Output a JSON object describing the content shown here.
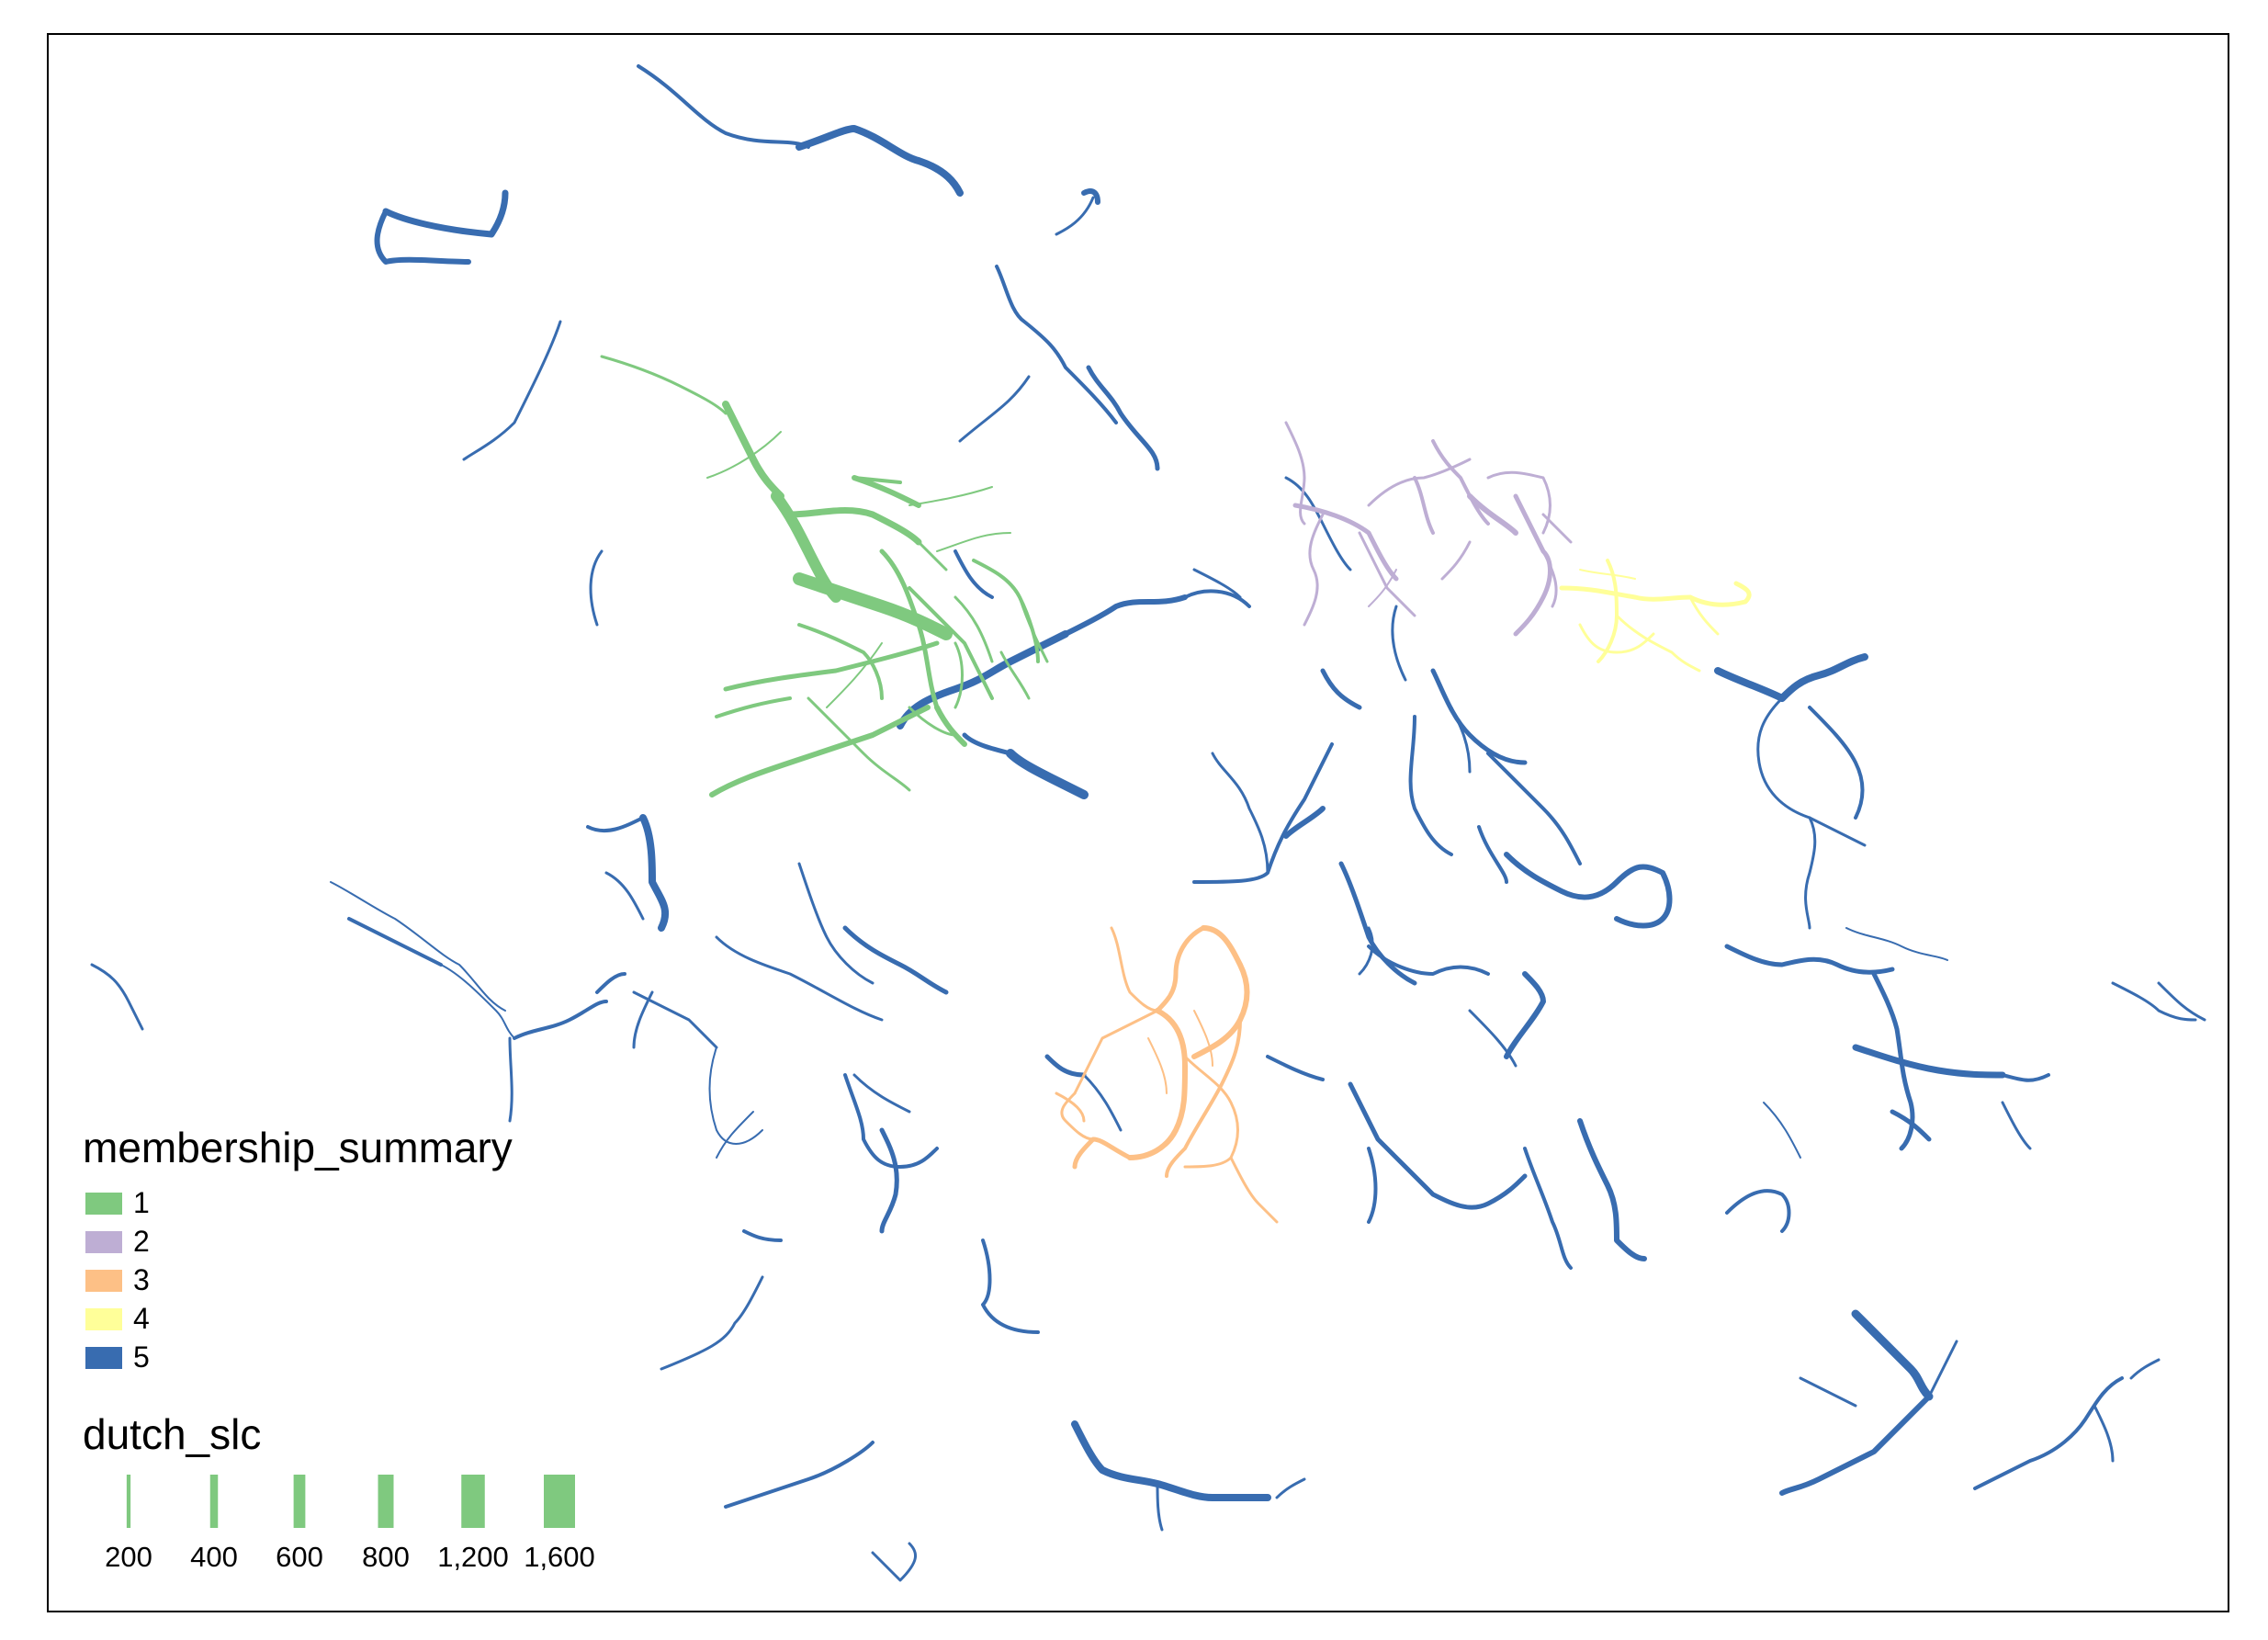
{
  "legend": {
    "membership_title": "membership_summary",
    "membership_items": [
      {
        "label": "1",
        "color": "#7fc97f"
      },
      {
        "label": "2",
        "color": "#beaed4"
      },
      {
        "label": "3",
        "color": "#fdc086"
      },
      {
        "label": "4",
        "color": "#ffff99"
      },
      {
        "label": "5",
        "color": "#386cb0"
      }
    ],
    "size_title": "dutch_slc",
    "size_items": [
      {
        "label": "200",
        "value": 200
      },
      {
        "label": "400",
        "value": 400
      },
      {
        "label": "600",
        "value": 600
      },
      {
        "label": "800",
        "value": 800
      },
      {
        "label": "1,200",
        "value": 1200
      },
      {
        "label": "1,600",
        "value": 1600
      }
    ],
    "size_swatch_color": "#7fc97f"
  },
  "colors": {
    "cluster_1": "#7fc97f",
    "cluster_2": "#beaed4",
    "cluster_3": "#fdc086",
    "cluster_4": "#ffff99",
    "cluster_5": "#386cb0",
    "frame": "#000000"
  }
}
